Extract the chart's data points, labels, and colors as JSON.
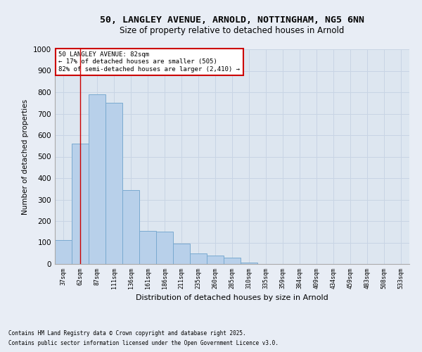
{
  "title_line1": "50, LANGLEY AVENUE, ARNOLD, NOTTINGHAM, NG5 6NN",
  "title_line2": "Size of property relative to detached houses in Arnold",
  "xlabel": "Distribution of detached houses by size in Arnold",
  "ylabel": "Number of detached properties",
  "categories": [
    "37sqm",
    "62sqm",
    "87sqm",
    "111sqm",
    "136sqm",
    "161sqm",
    "186sqm",
    "211sqm",
    "235sqm",
    "260sqm",
    "285sqm",
    "310sqm",
    "335sqm",
    "359sqm",
    "384sqm",
    "409sqm",
    "434sqm",
    "459sqm",
    "483sqm",
    "508sqm",
    "533sqm"
  ],
  "values": [
    110,
    560,
    790,
    750,
    345,
    155,
    150,
    95,
    50,
    40,
    30,
    5,
    0,
    0,
    0,
    0,
    0,
    0,
    0,
    0,
    0
  ],
  "bar_color": "#b8d0ea",
  "bar_edge_color": "#7aaad0",
  "background_color": "#dde6f0",
  "grid_color": "#c8d4e4",
  "annotation_text": "50 LANGLEY AVENUE: 82sqm\n← 17% of detached houses are smaller (505)\n82% of semi-detached houses are larger (2,410) →",
  "annotation_box_color": "#ffffff",
  "annotation_box_edge_color": "#cc0000",
  "vline_color": "#cc0000",
  "vline_x": 1.0,
  "ylim": [
    0,
    1000
  ],
  "yticks": [
    0,
    100,
    200,
    300,
    400,
    500,
    600,
    700,
    800,
    900,
    1000
  ],
  "footer_line1": "Contains HM Land Registry data © Crown copyright and database right 2025.",
  "footer_line2": "Contains public sector information licensed under the Open Government Licence v3.0.",
  "fig_bg_color": "#e8edf5",
  "title1_fontsize": 9.5,
  "title2_fontsize": 8.5
}
